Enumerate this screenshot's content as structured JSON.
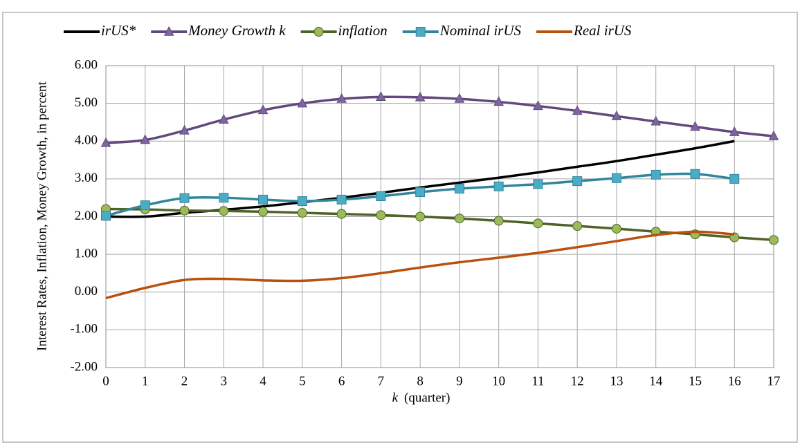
{
  "chart_data": {
    "type": "line",
    "y_label": "Interest Rates, Inflation, Money Growth, in percent",
    "x_label_var": "k",
    "x_label": "(quarter)",
    "x": [
      0,
      1,
      2,
      3,
      4,
      5,
      6,
      7,
      8,
      9,
      10,
      11,
      12,
      13,
      14,
      15,
      16,
      17
    ],
    "xlim": [
      0,
      17
    ],
    "xticks": [
      0,
      1,
      2,
      3,
      4,
      5,
      6,
      7,
      8,
      9,
      10,
      11,
      12,
      13,
      14,
      15,
      16,
      17
    ],
    "ylim": [
      -2,
      6
    ],
    "yticks": [
      {
        "value": -2,
        "label": "-2.00"
      },
      {
        "value": -1,
        "label": "-1.00"
      },
      {
        "value": 0,
        "label": "0.00"
      },
      {
        "value": 1,
        "label": "1.00"
      },
      {
        "value": 2,
        "label": "2.00"
      },
      {
        "value": 3,
        "label": "3.00"
      },
      {
        "value": 4,
        "label": "4.00"
      },
      {
        "value": 5,
        "label": "5.00"
      },
      {
        "value": 6,
        "label": "6.00"
      }
    ],
    "grid": true,
    "legend": "top",
    "smooth": true,
    "series": [
      {
        "name": "irUS*",
        "color": "#000000",
        "legend_text_color": "#000000",
        "marker": "none",
        "values": [
          2.0,
          2.0,
          2.1,
          2.18,
          2.27,
          2.38,
          2.5,
          2.63,
          2.77,
          2.9,
          3.03,
          3.17,
          3.32,
          3.47,
          3.64,
          3.81,
          4.0,
          null
        ]
      },
      {
        "name": "Money Growth k",
        "color": "#604a7b",
        "marker_color": "#8064a2",
        "legend_text_color": "#000000",
        "marker": "triangle",
        "values": [
          3.95,
          4.03,
          4.28,
          4.57,
          4.82,
          5.0,
          5.12,
          5.17,
          5.16,
          5.12,
          5.04,
          4.93,
          4.8,
          4.66,
          4.52,
          4.38,
          4.24,
          4.13
        ]
      },
      {
        "name": "inflation",
        "color": "#4f6228",
        "marker_color": "#9bbb59",
        "legend_text_color": "#4f6228",
        "marker": "circle",
        "values": [
          2.2,
          2.19,
          2.16,
          2.15,
          2.13,
          2.1,
          2.07,
          2.04,
          2.0,
          1.95,
          1.89,
          1.82,
          1.75,
          1.68,
          1.6,
          1.53,
          1.45,
          1.38
        ]
      },
      {
        "name": "Nominal irUS",
        "color": "#31859c",
        "marker_color": "#4bacc6",
        "legend_text_color": "#31859c",
        "marker": "square",
        "values": [
          2.02,
          2.3,
          2.49,
          2.5,
          2.45,
          2.41,
          2.45,
          2.54,
          2.65,
          2.74,
          2.8,
          2.86,
          2.94,
          3.02,
          3.11,
          3.13,
          3.0,
          null
        ]
      },
      {
        "name": "Real irUS",
        "color": "#b8510d",
        "legend_text_color": "#b8510d",
        "marker": "none",
        "values": [
          -0.16,
          0.11,
          0.32,
          0.35,
          0.31,
          0.3,
          0.37,
          0.5,
          0.65,
          0.79,
          0.91,
          1.04,
          1.19,
          1.35,
          1.51,
          1.6,
          1.53,
          null
        ]
      }
    ]
  }
}
